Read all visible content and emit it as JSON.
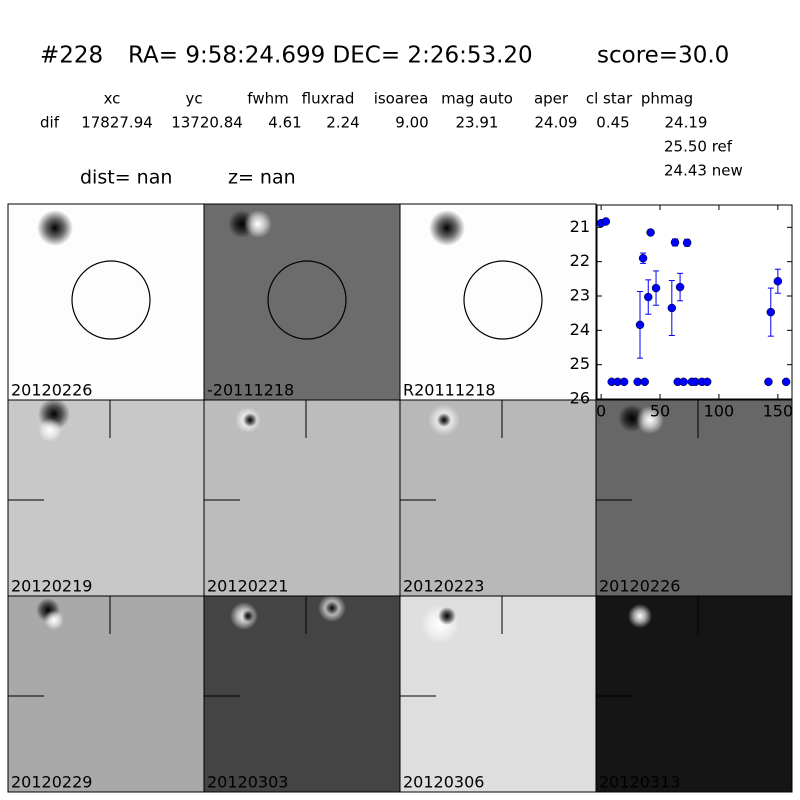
{
  "header": {
    "id": "#228",
    "coords": "RA= 9:58:24.699 DEC= 2:26:53.20",
    "score": "score=30.0"
  },
  "table": {
    "columns": [
      "xc",
      "yc",
      "fwhm",
      "fluxrad",
      "isoarea",
      "mag auto",
      "aper",
      "cl star",
      "phmag"
    ],
    "row_label": "dif",
    "values": [
      "17827.94",
      "13720.84",
      "4.61",
      "2.24",
      "9.00",
      "23.91",
      "24.09",
      "0.45",
      "24.19"
    ],
    "extra": [
      "25.50 ref",
      "24.43 new"
    ]
  },
  "dist": "dist=   nan",
  "z": "z=   nan",
  "panels": [
    {
      "label": "20120226"
    },
    {
      "label": "-20111218"
    },
    {
      "label": "R20111218"
    },
    {
      "label": "20120219"
    },
    {
      "label": "20120221"
    },
    {
      "label": "20120223"
    },
    {
      "label": "20120226",
      "label_color": "#e8201e"
    },
    {
      "label": "20120229"
    },
    {
      "label": "20120303"
    },
    {
      "label": "20120306"
    },
    {
      "label": "20120313"
    }
  ],
  "chart_data": {
    "type": "scatter",
    "color": "#0000ff",
    "x": [
      0,
      4,
      9,
      14,
      19.5,
      31,
      37,
      33,
      35.6,
      40,
      42,
      46.6,
      60,
      62.7,
      65,
      67,
      70,
      73,
      77,
      80,
      85.6,
      90,
      142,
      144,
      150,
      157
    ],
    "values": [
      20.88,
      20.83,
      25.5,
      25.5,
      25.5,
      25.5,
      25.5,
      23.84,
      21.9,
      23.03,
      21.15,
      22.77,
      23.35,
      21.44,
      25.5,
      22.74,
      25.5,
      21.45,
      25.5,
      25.5,
      25.5,
      25.5,
      25.5,
      23.47,
      22.57,
      25.5
    ],
    "errors": [
      null,
      null,
      null,
      null,
      null,
      null,
      null,
      0.97,
      0.15,
      0.5,
      null,
      0.5,
      0.8,
      0.1,
      null,
      0.4,
      null,
      0.1,
      null,
      null,
      null,
      null,
      null,
      0.7,
      0.35,
      null
    ],
    "xlim": [
      -3.5,
      162
    ],
    "ylim": [
      26,
      20.35
    ],
    "xticks": [
      0,
      50,
      100,
      150
    ],
    "yticks": [
      21,
      22,
      23,
      24,
      25,
      26
    ]
  }
}
